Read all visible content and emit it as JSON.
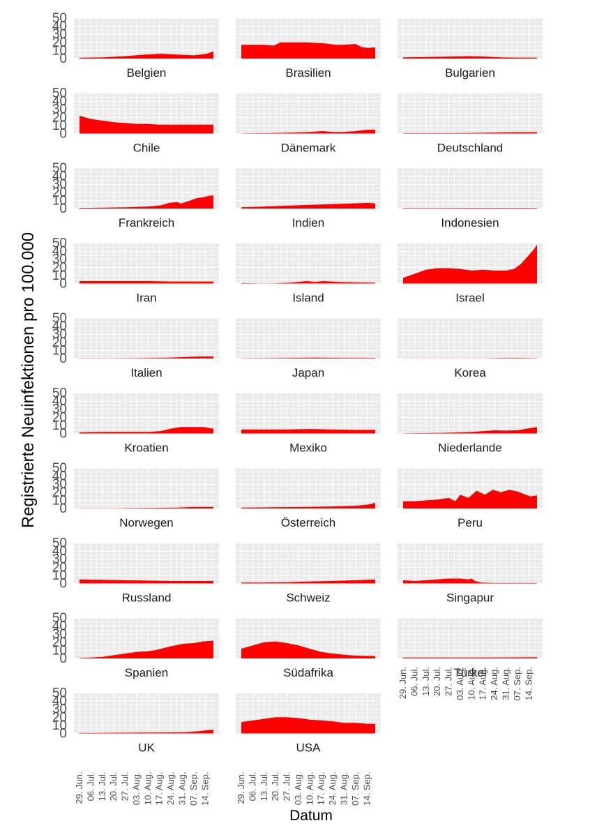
{
  "colors": {
    "area": "#ff0000",
    "panel_bg": "#ebebeb",
    "grid": "#ffffff"
  },
  "chart_data": {
    "type": "area",
    "xlabel": "Datum",
    "ylabel": "Registrierte Neuinfektionen pro 100.000",
    "ylim": [
      0,
      50
    ],
    "yticks": [
      "0",
      "10",
      "20",
      "30",
      "40",
      "50"
    ],
    "xticks": [
      "29. Jun.",
      "06. Jul.",
      "13. Jul.",
      "20. Jul.",
      "27. Jul.",
      "03. Aug.",
      "10. Aug.",
      "17. Aug.",
      "24. Aug.",
      "31. Aug.",
      "07. Sep.",
      "14. Sep."
    ],
    "x_range_days": [
      0,
      82
    ],
    "series": [
      {
        "name": "Belgien",
        "x": [
          0,
          14,
          28,
          40,
          50,
          60,
          70,
          78,
          82
        ],
        "values": [
          1,
          1.5,
          3,
          5,
          6,
          5,
          4,
          6,
          9
        ]
      },
      {
        "name": "Brasilien",
        "x": [
          0,
          14,
          20,
          24,
          30,
          40,
          50,
          58,
          62,
          70,
          74,
          78,
          82
        ],
        "values": [
          17,
          17,
          16,
          20,
          20,
          20,
          19,
          17,
          17,
          18,
          14,
          13,
          14
        ]
      },
      {
        "name": "Bulgarien",
        "x": [
          0,
          14,
          28,
          40,
          50,
          60,
          70,
          82
        ],
        "values": [
          1.5,
          2,
          2.5,
          3,
          2.5,
          1.5,
          1.2,
          1.2
        ]
      },
      {
        "name": "Chile",
        "x": [
          0,
          7,
          14,
          21,
          28,
          35,
          42,
          49,
          56,
          63,
          70,
          77,
          82
        ],
        "values": [
          22,
          18,
          16,
          14,
          13,
          12,
          12,
          11,
          11,
          11,
          11,
          11,
          11
        ]
      },
      {
        "name": "Dänemark",
        "x": [
          0,
          14,
          28,
          42,
          50,
          56,
          63,
          70,
          76,
          82
        ],
        "values": [
          0.3,
          0.5,
          1,
          2,
          3,
          2,
          2,
          3,
          4.5,
          5
        ]
      },
      {
        "name": "Deutschland",
        "x": [
          0,
          20,
          40,
          60,
          70,
          82
        ],
        "values": [
          0.4,
          0.5,
          0.8,
          1.5,
          1.7,
          1.7
        ]
      },
      {
        "name": "Frankreich",
        "x": [
          0,
          14,
          28,
          42,
          50,
          55,
          60,
          62,
          68,
          72,
          76,
          80,
          82
        ],
        "values": [
          0.8,
          1,
          1.5,
          2.5,
          4,
          7,
          8,
          6,
          10,
          13,
          14,
          16,
          16
        ]
      },
      {
        "name": "Indien",
        "x": [
          0,
          14,
          28,
          42,
          56,
          70,
          78,
          82
        ],
        "values": [
          1.5,
          2.5,
          3.5,
          4.5,
          5.5,
          6.5,
          7,
          6.5
        ]
      },
      {
        "name": "Indonesien",
        "x": [
          0,
          41,
          82
        ],
        "values": [
          0.5,
          0.6,
          0.7
        ]
      },
      {
        "name": "Iran",
        "x": [
          0,
          14,
          28,
          42,
          56,
          70,
          82
        ],
        "values": [
          3,
          3,
          3,
          3,
          2.5,
          2.5,
          2.5
        ]
      },
      {
        "name": "Island",
        "x": [
          0,
          10,
          20,
          30,
          40,
          45,
          50,
          55,
          60,
          70,
          80,
          82
        ],
        "values": [
          0.5,
          0.3,
          0.2,
          1,
          3,
          2,
          3,
          2.5,
          2,
          1.5,
          1,
          1
        ]
      },
      {
        "name": "Israel",
        "x": [
          0,
          7,
          14,
          21,
          28,
          35,
          42,
          49,
          56,
          63,
          68,
          72,
          76,
          80,
          82
        ],
        "values": [
          7,
          12,
          17,
          19,
          19,
          18,
          16,
          17,
          16,
          16,
          18,
          24,
          33,
          42,
          48
        ]
      },
      {
        "name": "Italien",
        "x": [
          0,
          20,
          40,
          55,
          65,
          75,
          82
        ],
        "values": [
          0.2,
          0.3,
          0.5,
          1,
          2,
          2.5,
          2.5
        ]
      },
      {
        "name": "Japan",
        "x": [
          0,
          20,
          30,
          45,
          60,
          82
        ],
        "values": [
          0.2,
          0.5,
          0.8,
          1,
          0.8,
          0.6
        ]
      },
      {
        "name": "Korea",
        "x": [
          0,
          50,
          60,
          70,
          82
        ],
        "values": [
          0.1,
          0.1,
          0.5,
          0.6,
          0.3
        ]
      },
      {
        "name": "Kroatien",
        "x": [
          0,
          14,
          28,
          42,
          50,
          56,
          62,
          70,
          76,
          82
        ],
        "values": [
          1.5,
          2,
          2,
          2,
          3,
          6,
          8,
          8,
          8,
          6
        ]
      },
      {
        "name": "Mexiko",
        "x": [
          0,
          14,
          28,
          42,
          56,
          70,
          82
        ],
        "values": [
          5,
          5,
          5,
          5.5,
          5,
          4.5,
          4.5
        ]
      },
      {
        "name": "Niederlande",
        "x": [
          0,
          14,
          28,
          42,
          50,
          56,
          62,
          70,
          76,
          82
        ],
        "values": [
          0.3,
          0.5,
          1,
          2,
          3,
          4,
          3.5,
          4,
          6,
          8
        ]
      },
      {
        "name": "Norwegen",
        "x": [
          0,
          20,
          40,
          60,
          70,
          82
        ],
        "values": [
          0.2,
          0.3,
          0.6,
          1,
          2,
          2
        ]
      },
      {
        "name": "Österreich",
        "x": [
          0,
          20,
          40,
          55,
          65,
          72,
          78,
          82
        ],
        "values": [
          1,
          1.5,
          2,
          2.5,
          3,
          3.5,
          5,
          7
        ]
      },
      {
        "name": "Peru",
        "x": [
          0,
          7,
          14,
          21,
          28,
          32,
          35,
          40,
          45,
          50,
          55,
          60,
          65,
          70,
          75,
          78,
          82
        ],
        "values": [
          9,
          9,
          10,
          11,
          13,
          9,
          17,
          13,
          22,
          17,
          23,
          20,
          23,
          21,
          17,
          15,
          16
        ]
      },
      {
        "name": "Russland",
        "x": [
          0,
          14,
          28,
          42,
          56,
          70,
          82
        ],
        "values": [
          5,
          4.5,
          4,
          3.5,
          3,
          3,
          3
        ]
      },
      {
        "name": "Schweiz",
        "x": [
          0,
          14,
          28,
          42,
          56,
          70,
          82
        ],
        "values": [
          1,
          1.2,
          1.5,
          2.5,
          3,
          4,
          5
        ]
      },
      {
        "name": "Singapur",
        "x": [
          0,
          7,
          14,
          21,
          28,
          35,
          40,
          42,
          44,
          48,
          55,
          70,
          82
        ],
        "values": [
          4,
          3,
          4,
          5,
          6,
          6,
          5,
          6,
          3,
          1,
          0.5,
          0.5,
          0.5
        ]
      },
      {
        "name": "Spanien",
        "x": [
          0,
          7,
          14,
          21,
          28,
          35,
          42,
          46,
          50,
          56,
          63,
          70,
          76,
          82
        ],
        "values": [
          0.5,
          1,
          2,
          4,
          6,
          8,
          9,
          10,
          12,
          15,
          18,
          19,
          21,
          22
        ]
      },
      {
        "name": "Südafrika",
        "x": [
          0,
          7,
          14,
          21,
          28,
          35,
          42,
          49,
          56,
          63,
          70,
          77,
          82
        ],
        "values": [
          12,
          16,
          20,
          21,
          19,
          16,
          12,
          8,
          6,
          4.5,
          3.5,
          3,
          3
        ]
      },
      {
        "name": "Türkei",
        "x": [
          0,
          20,
          40,
          60,
          82
        ],
        "values": [
          1,
          1,
          1,
          1.2,
          1.5
        ]
      },
      {
        "name": "UK",
        "x": [
          0,
          20,
          40,
          55,
          65,
          72,
          78,
          82
        ],
        "values": [
          0.5,
          0.8,
          1,
          1.2,
          1.5,
          2.5,
          4,
          4.5
        ]
      },
      {
        "name": "USA",
        "x": [
          0,
          7,
          14,
          21,
          28,
          35,
          42,
          49,
          56,
          63,
          70,
          77,
          82
        ],
        "values": [
          14,
          16,
          18,
          20,
          20,
          19,
          17,
          16,
          15,
          13,
          13,
          12,
          12
        ]
      }
    ]
  }
}
